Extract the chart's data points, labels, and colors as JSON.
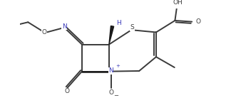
{
  "bg_color": "#ffffff",
  "bond_color": "#3a3a3a",
  "N_color": "#3838b8",
  "line_width": 1.4,
  "fig_width": 3.24,
  "fig_height": 1.55,
  "dpi": 100,
  "xlim": [
    0.0,
    8.1
  ],
  "ylim": [
    -0.3,
    4.0
  ]
}
